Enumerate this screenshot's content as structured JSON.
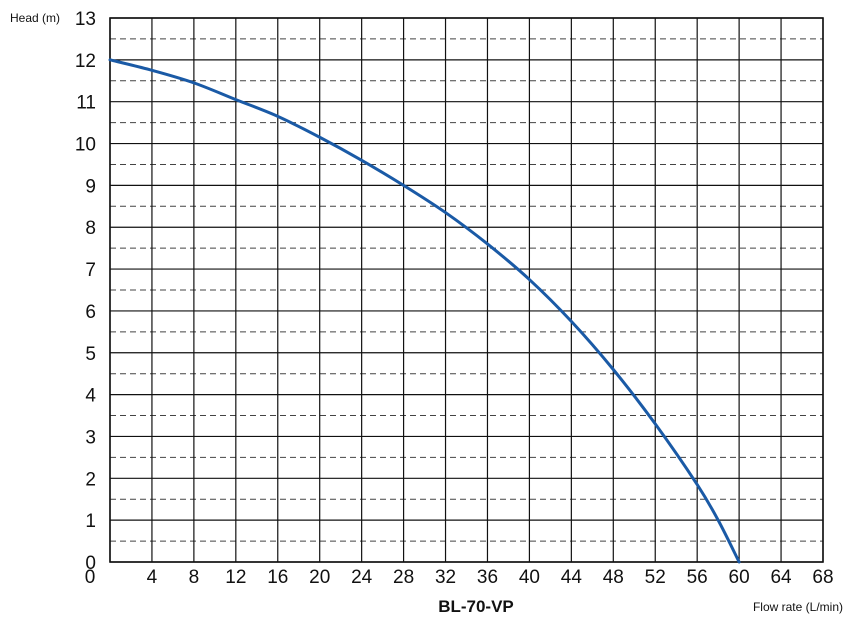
{
  "chart_data": {
    "type": "line",
    "title": "BL-70-VP",
    "xlabel": "Flow rate (L/min)",
    "ylabel": "Head (m)",
    "xlim": [
      0,
      68
    ],
    "ylim": [
      0,
      13
    ],
    "x_ticks": [
      0,
      4,
      8,
      12,
      16,
      20,
      24,
      28,
      32,
      36,
      40,
      44,
      48,
      52,
      56,
      60,
      64,
      68
    ],
    "y_ticks": [
      0,
      1,
      2,
      3,
      4,
      5,
      6,
      7,
      8,
      9,
      10,
      11,
      12,
      13
    ],
    "grid": true,
    "grid_minor_y_dashed": true,
    "series": [
      {
        "color": "#1a5aa6",
        "x": [
          0,
          4,
          8,
          12,
          16,
          20,
          24,
          28,
          32,
          36,
          40,
          44,
          48,
          52,
          56,
          58,
          60
        ],
        "y": [
          12.0,
          11.75,
          11.45,
          11.05,
          10.65,
          10.15,
          9.6,
          9.0,
          8.35,
          7.6,
          6.75,
          5.75,
          4.6,
          3.3,
          1.85,
          1.0,
          0.0
        ]
      }
    ]
  }
}
